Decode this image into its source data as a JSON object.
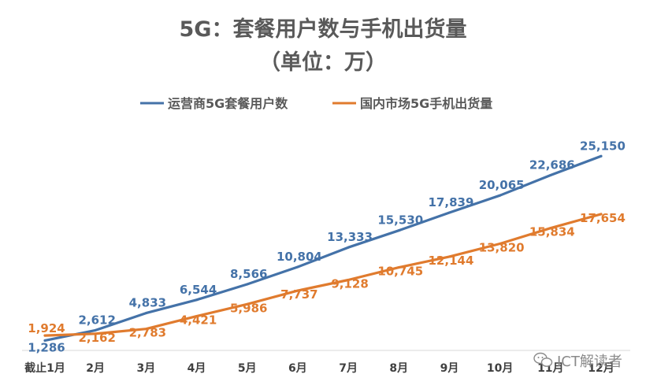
{
  "chart_data": {
    "type": "line",
    "title": "5G：套餐用户数与手机出货量",
    "subtitle": "（单位：万）",
    "categories": [
      "截止1月",
      "2月",
      "3月",
      "4月",
      "5月",
      "6月",
      "7月",
      "8月",
      "9月",
      "10月",
      "11月",
      "12月"
    ],
    "series": [
      {
        "name": "运营商5G套餐用户数",
        "color": "#4472a8",
        "values": [
          1286,
          2612,
          4833,
          6544,
          8566,
          10804,
          13333,
          15530,
          17839,
          20065,
          22686,
          25150
        ],
        "labels": [
          "1,286",
          "2,612",
          "4,833",
          "6,544",
          "8,566",
          "10,804",
          "13,333",
          "15,530",
          "17,839",
          "20,065",
          "22,686",
          "25,150"
        ]
      },
      {
        "name": "国内市场5G手机出货量",
        "color": "#e07b2e",
        "values": [
          1924,
          2162,
          2783,
          4421,
          5986,
          7737,
          9128,
          10745,
          12144,
          13820,
          15834,
          17654
        ],
        "labels": [
          "1,924",
          "2,162",
          "2,783",
          "4,421",
          "5,986",
          "7,737",
          "9,128",
          "10,745",
          "12,144",
          "13,820",
          "15,834",
          "17,654"
        ]
      }
    ],
    "legend": "top-center",
    "grid": false,
    "ylim": [
      0,
      26000
    ]
  },
  "watermark": {
    "icon": "wechat-icon",
    "text": "ICT解读者"
  }
}
